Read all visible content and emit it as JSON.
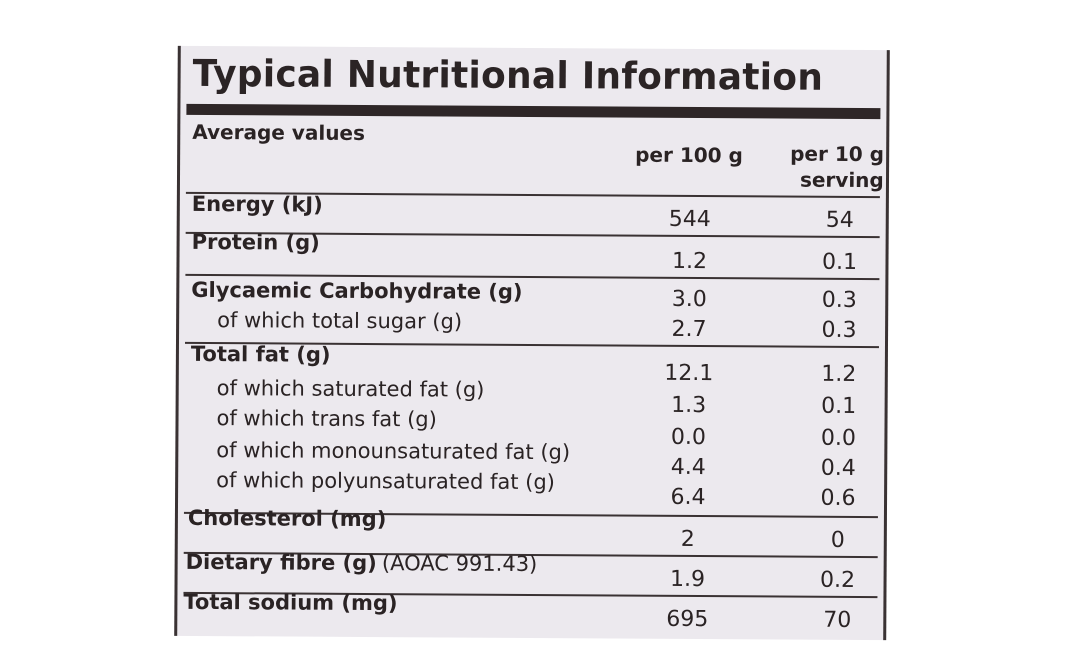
{
  "title": "Typical Nutritional Information",
  "headers": {
    "average_values": "Average values",
    "per_100g": "per 100 g",
    "per_serving_line1": "per 10 g",
    "per_serving_line2": "serving"
  },
  "rows": [
    {
      "label": "Energy (kJ)",
      "per_100g": "544",
      "per_serving": "54"
    },
    {
      "label": "Protein (g)",
      "per_100g": "1.2",
      "per_serving": "0.1"
    },
    {
      "label": "Glycaemic Carbohydrate (g)",
      "per_100g": "3.0",
      "per_serving": "0.3"
    },
    {
      "label": "of which total sugar (g)",
      "per_100g": "2.7",
      "per_serving": "0.3"
    },
    {
      "label": "Total fat (g)",
      "per_100g": "12.1",
      "per_serving": "1.2"
    },
    {
      "label": "of which saturated fat (g)",
      "per_100g": "1.3",
      "per_serving": "0.1"
    },
    {
      "label": "of which trans fat (g)",
      "per_100g": "0.0",
      "per_serving": "0.0"
    },
    {
      "label": "of which monounsaturated fat (g)",
      "per_100g": "4.4",
      "per_serving": "0.4"
    },
    {
      "label": "of which polyunsaturated fat (g)",
      "per_100g": "6.4",
      "per_serving": "0.6"
    },
    {
      "label": "Cholesterol (mg)",
      "per_100g": "2",
      "per_serving": "0"
    },
    {
      "label": "Dietary fibre (g)",
      "label_suffix": "(AOAC 991.43)",
      "per_100g": "1.9",
      "per_serving": "0.2"
    },
    {
      "label": "Total sodium (mg)",
      "per_100g": "695",
      "per_serving": "70"
    }
  ]
}
